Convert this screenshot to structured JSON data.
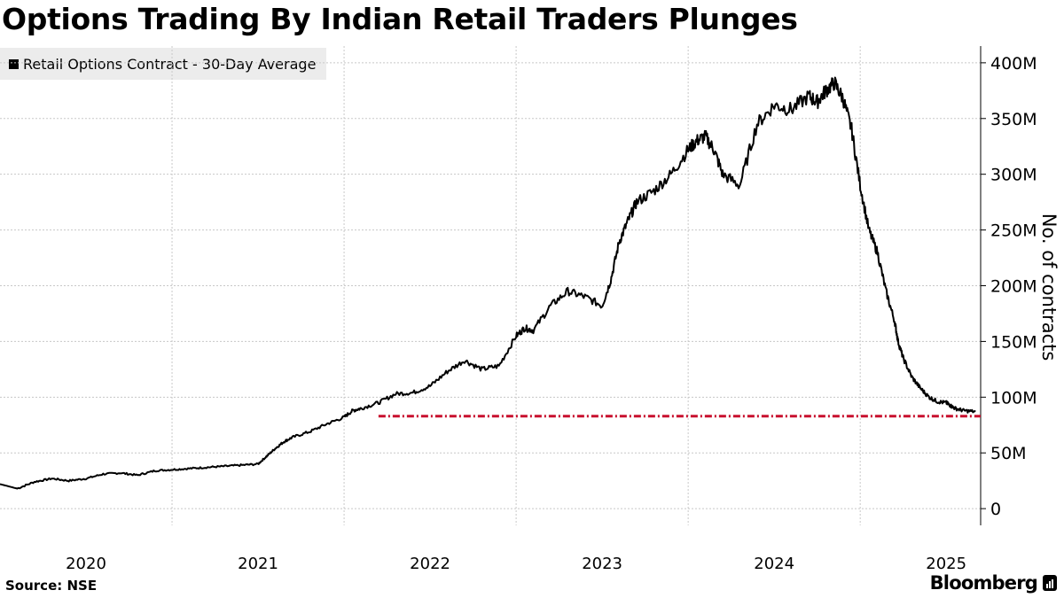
{
  "title": "Options Trading By Indian Retail Traders Plunges",
  "legend_label": "Retail Options Contract - 30-Day Average",
  "source": "Source: NSE",
  "brand": "Bloomberg",
  "colors": {
    "series": "#000000",
    "reference_line": "#c8102e",
    "grid": "#c8c8c8",
    "legend_bg": "#ececec"
  },
  "chart_data": {
    "type": "line",
    "title": "Options Trading By Indian Retail Traders Plunges",
    "xlabel": "",
    "ylabel": "No. of contracts",
    "xlim": [
      2019.5,
      2025.2
    ],
    "ylim": [
      -15,
      415
    ],
    "y_unit": "M",
    "x_ticks": [
      2020,
      2021,
      2022,
      2023,
      2024,
      2025
    ],
    "x_tick_labels": [
      "2020",
      "2021",
      "2022",
      "2023",
      "2024",
      "2025"
    ],
    "y_ticks": [
      0,
      50,
      100,
      150,
      200,
      250,
      300,
      350,
      400
    ],
    "y_tick_labels": [
      "0",
      "50M",
      "100M",
      "150M",
      "200M",
      "250M",
      "300M",
      "350M",
      "400M"
    ],
    "grid": true,
    "legend_position": "top-left",
    "series": [
      {
        "name": "Retail Options Contract - 30-Day Average",
        "x": [
          2019.5,
          2019.6,
          2019.7,
          2019.8,
          2019.9,
          2020.0,
          2020.1,
          2020.2,
          2020.3,
          2020.4,
          2020.5,
          2020.6,
          2020.7,
          2020.8,
          2020.9,
          2021.0,
          2021.05,
          2021.1,
          2021.15,
          2021.2,
          2021.3,
          2021.4,
          2021.5,
          2021.55,
          2021.6,
          2021.7,
          2021.8,
          2021.9,
          2022.0,
          2022.1,
          2022.2,
          2022.3,
          2022.4,
          2022.5,
          2022.55,
          2022.6,
          2022.7,
          2022.8,
          2022.9,
          2023.0,
          2023.05,
          2023.1,
          2023.15,
          2023.2,
          2023.3,
          2023.4,
          2023.5,
          2023.55,
          2023.6,
          2023.65,
          2023.7,
          2023.8,
          2023.9,
          2024.0,
          2024.1,
          2024.2,
          2024.25,
          2024.3,
          2024.35,
          2024.4,
          2024.45,
          2024.5,
          2024.55,
          2024.6,
          2024.65,
          2024.7,
          2024.72,
          2024.75,
          2024.8,
          2024.85,
          2024.9,
          2024.95,
          2025.0,
          2025.02,
          2025.05,
          2025.1,
          2025.17
        ],
        "values": [
          22,
          18,
          24,
          27,
          25,
          27,
          31,
          32,
          30,
          34,
          35,
          36,
          37,
          38,
          39,
          40,
          47,
          54,
          60,
          64,
          69,
          76,
          82,
          88,
          90,
          95,
          103,
          104,
          110,
          123,
          133,
          125,
          128,
          155,
          162,
          160,
          182,
          195,
          190,
          182,
          205,
          240,
          258,
          275,
          285,
          300,
          322,
          330,
          334,
          322,
          300,
          290,
          345,
          362,
          358,
          370,
          365,
          375,
          382,
          368,
          340,
          290,
          250,
          230,
          195,
          168,
          150,
          135,
          118,
          108,
          100,
          96,
          95,
          93,
          90,
          88,
          87
        ]
      }
    ],
    "reference_line": {
      "y": 83,
      "x_start": 2021.7,
      "x_end": 2025.2,
      "style": "dash-dot"
    }
  }
}
